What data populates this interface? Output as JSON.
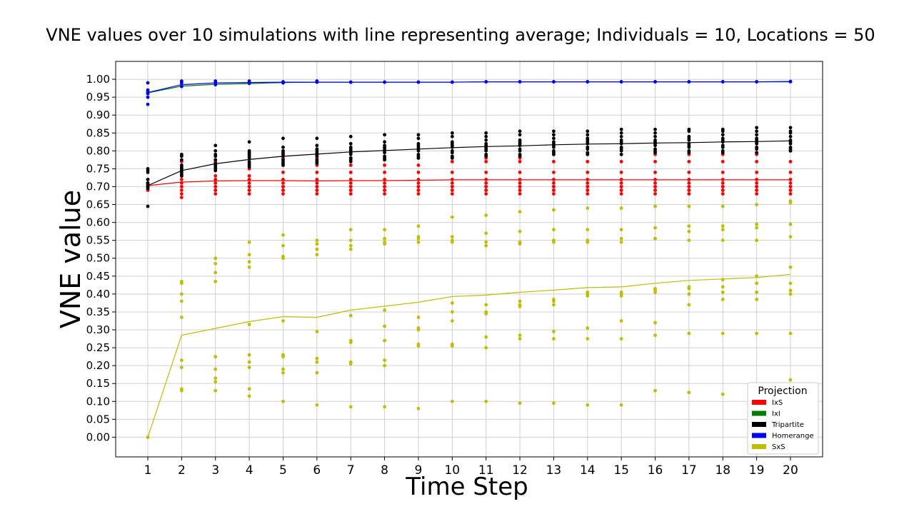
{
  "chart_data": {
    "type": "scatter",
    "title": "VNE values over 10 simulations with line representing average; Individuals = 10, Locations = 50",
    "xlabel": "Time Step",
    "ylabel": "VNE value",
    "x": [
      1,
      2,
      3,
      4,
      5,
      6,
      7,
      8,
      9,
      10,
      11,
      12,
      13,
      14,
      15,
      16,
      17,
      18,
      19,
      20
    ],
    "xlim": [
      0.05,
      20.95
    ],
    "ylim": [
      -0.055,
      1.05
    ],
    "yticks": [
      "0.00",
      "0.05",
      "0.10",
      "0.15",
      "0.20",
      "0.25",
      "0.30",
      "0.35",
      "0.40",
      "0.45",
      "0.50",
      "0.55",
      "0.60",
      "0.65",
      "0.70",
      "0.75",
      "0.80",
      "0.85",
      "0.90",
      "0.95",
      "1.00"
    ],
    "xticks": [
      "1",
      "2",
      "3",
      "4",
      "5",
      "6",
      "7",
      "8",
      "9",
      "10",
      "11",
      "12",
      "13",
      "14",
      "15",
      "16",
      "17",
      "18",
      "19",
      "20"
    ],
    "grid": true,
    "legend": {
      "title": "Projection",
      "placement": "lower-right",
      "entries": [
        {
          "label": "IxS",
          "color": "#ff0000"
        },
        {
          "label": "IxI",
          "color": "#008000"
        },
        {
          "label": "Tripartite",
          "color": "#000000"
        },
        {
          "label": "Homerange",
          "color": "#0000ff"
        },
        {
          "label": "SxS",
          "color": "#bfbf00"
        }
      ]
    },
    "series": [
      {
        "name": "IxS",
        "color": "#ff0000",
        "line_color": "#ff0000",
        "average": [
          0.703,
          0.713,
          0.716,
          0.717,
          0.717,
          0.716,
          0.717,
          0.717,
          0.718,
          0.719,
          0.719,
          0.719,
          0.719,
          0.719,
          0.719,
          0.719,
          0.719,
          0.719,
          0.719,
          0.719
        ],
        "points": [
          [
            0.7,
            0.71,
            0.72,
            0.69,
            0.7,
            0.71,
            0.7,
            0.69,
            0.72,
            0.7
          ],
          [
            0.68,
            0.69,
            0.7,
            0.71,
            0.72,
            0.73,
            0.75,
            0.77,
            0.67,
            0.7
          ],
          [
            0.68,
            0.69,
            0.7,
            0.71,
            0.72,
            0.73,
            0.75,
            0.77,
            0.69,
            0.7
          ],
          [
            0.68,
            0.69,
            0.7,
            0.71,
            0.72,
            0.73,
            0.75,
            0.79,
            0.69,
            0.7
          ],
          [
            0.68,
            0.69,
            0.7,
            0.71,
            0.72,
            0.74,
            0.76,
            0.78,
            0.69,
            0.7
          ],
          [
            0.68,
            0.69,
            0.7,
            0.71,
            0.72,
            0.74,
            0.76,
            0.78,
            0.69,
            0.7
          ],
          [
            0.68,
            0.69,
            0.7,
            0.71,
            0.72,
            0.74,
            0.76,
            0.78,
            0.69,
            0.7
          ],
          [
            0.68,
            0.69,
            0.7,
            0.71,
            0.72,
            0.74,
            0.76,
            0.78,
            0.69,
            0.7
          ],
          [
            0.68,
            0.69,
            0.7,
            0.71,
            0.72,
            0.74,
            0.76,
            0.78,
            0.69,
            0.7
          ],
          [
            0.68,
            0.69,
            0.7,
            0.71,
            0.72,
            0.74,
            0.77,
            0.78,
            0.69,
            0.7
          ],
          [
            0.68,
            0.69,
            0.7,
            0.71,
            0.72,
            0.74,
            0.77,
            0.78,
            0.69,
            0.7
          ],
          [
            0.68,
            0.69,
            0.7,
            0.71,
            0.72,
            0.74,
            0.77,
            0.78,
            0.69,
            0.7
          ],
          [
            0.68,
            0.69,
            0.7,
            0.71,
            0.72,
            0.74,
            0.77,
            0.79,
            0.69,
            0.7
          ],
          [
            0.68,
            0.69,
            0.7,
            0.71,
            0.72,
            0.74,
            0.77,
            0.79,
            0.69,
            0.7
          ],
          [
            0.68,
            0.69,
            0.7,
            0.71,
            0.72,
            0.74,
            0.77,
            0.79,
            0.69,
            0.7
          ],
          [
            0.68,
            0.69,
            0.7,
            0.71,
            0.72,
            0.74,
            0.77,
            0.79,
            0.69,
            0.7
          ],
          [
            0.68,
            0.69,
            0.7,
            0.71,
            0.72,
            0.74,
            0.77,
            0.79,
            0.69,
            0.7
          ],
          [
            0.68,
            0.69,
            0.7,
            0.71,
            0.72,
            0.74,
            0.77,
            0.79,
            0.69,
            0.7
          ],
          [
            0.68,
            0.69,
            0.7,
            0.71,
            0.72,
            0.74,
            0.77,
            0.79,
            0.69,
            0.7
          ],
          [
            0.68,
            0.69,
            0.7,
            0.71,
            0.72,
            0.74,
            0.77,
            0.8,
            0.69,
            0.7
          ]
        ]
      },
      {
        "name": "IxI",
        "color": "#008000",
        "line_color": "#008000",
        "average": [
          0.962,
          0.981,
          0.986,
          0.988,
          0.991,
          0.992,
          0.992,
          0.992,
          0.992,
          0.992,
          0.993,
          0.993,
          0.993,
          0.993,
          0.993,
          0.993,
          0.993,
          0.993,
          0.993,
          0.993
        ],
        "points": [
          [
            0.96,
            0.965
          ],
          [
            0.98,
            0.985
          ],
          [
            0.985,
            0.99
          ],
          [
            0.988,
            0.99
          ],
          [
            0.99,
            0.992
          ],
          [
            0.992
          ],
          [
            0.992
          ],
          [
            0.992
          ],
          [
            0.992
          ],
          [
            0.992
          ],
          [
            0.993
          ],
          [
            0.993
          ],
          [
            0.993
          ],
          [
            0.993
          ],
          [
            0.993
          ],
          [
            0.993
          ],
          [
            0.993
          ],
          [
            0.993
          ],
          [
            0.993
          ],
          [
            0.993
          ]
        ]
      },
      {
        "name": "Tripartite",
        "color": "#000000",
        "line_color": "#000000",
        "average": [
          0.703,
          0.745,
          0.764,
          0.776,
          0.785,
          0.791,
          0.797,
          0.801,
          0.805,
          0.809,
          0.812,
          0.814,
          0.817,
          0.819,
          0.82,
          0.822,
          0.823,
          0.825,
          0.826,
          0.828
        ],
        "points": [
          [
            0.645,
            0.695,
            0.7,
            0.705,
            0.71,
            0.72,
            0.74,
            0.745,
            0.75,
            0.7
          ],
          [
            0.73,
            0.735,
            0.74,
            0.745,
            0.75,
            0.755,
            0.76,
            0.775,
            0.785,
            0.79
          ],
          [
            0.745,
            0.75,
            0.755,
            0.76,
            0.765,
            0.775,
            0.785,
            0.79,
            0.8,
            0.815
          ],
          [
            0.755,
            0.76,
            0.765,
            0.77,
            0.78,
            0.785,
            0.79,
            0.795,
            0.8,
            0.825
          ],
          [
            0.76,
            0.765,
            0.77,
            0.775,
            0.785,
            0.79,
            0.795,
            0.8,
            0.81,
            0.835
          ],
          [
            0.765,
            0.77,
            0.775,
            0.785,
            0.79,
            0.795,
            0.8,
            0.805,
            0.815,
            0.835
          ],
          [
            0.77,
            0.775,
            0.78,
            0.79,
            0.795,
            0.8,
            0.805,
            0.81,
            0.82,
            0.84
          ],
          [
            0.775,
            0.78,
            0.785,
            0.795,
            0.8,
            0.805,
            0.81,
            0.815,
            0.825,
            0.845
          ],
          [
            0.78,
            0.785,
            0.79,
            0.8,
            0.805,
            0.81,
            0.815,
            0.82,
            0.835,
            0.845
          ],
          [
            0.78,
            0.785,
            0.795,
            0.8,
            0.81,
            0.815,
            0.82,
            0.825,
            0.84,
            0.85
          ],
          [
            0.785,
            0.79,
            0.8,
            0.805,
            0.81,
            0.815,
            0.82,
            0.83,
            0.84,
            0.85
          ],
          [
            0.785,
            0.79,
            0.8,
            0.805,
            0.815,
            0.82,
            0.825,
            0.83,
            0.845,
            0.855
          ],
          [
            0.79,
            0.795,
            0.8,
            0.81,
            0.815,
            0.82,
            0.825,
            0.835,
            0.845,
            0.855
          ],
          [
            0.79,
            0.795,
            0.805,
            0.81,
            0.82,
            0.825,
            0.83,
            0.835,
            0.845,
            0.855
          ],
          [
            0.79,
            0.8,
            0.805,
            0.81,
            0.82,
            0.825,
            0.83,
            0.84,
            0.85,
            0.86
          ],
          [
            0.795,
            0.8,
            0.805,
            0.815,
            0.82,
            0.825,
            0.83,
            0.84,
            0.85,
            0.86
          ],
          [
            0.795,
            0.8,
            0.81,
            0.815,
            0.82,
            0.83,
            0.835,
            0.84,
            0.855,
            0.86
          ],
          [
            0.795,
            0.8,
            0.81,
            0.815,
            0.825,
            0.83,
            0.835,
            0.845,
            0.855,
            0.86
          ],
          [
            0.795,
            0.805,
            0.81,
            0.82,
            0.825,
            0.83,
            0.835,
            0.845,
            0.855,
            0.865
          ],
          [
            0.8,
            0.805,
            0.81,
            0.82,
            0.825,
            0.83,
            0.84,
            0.85,
            0.855,
            0.865
          ]
        ]
      },
      {
        "name": "Homerange",
        "color": "#0000ff",
        "line_color": "#0000ff",
        "average": [
          0.963,
          0.985,
          0.99,
          0.991,
          0.992,
          0.992,
          0.992,
          0.992,
          0.992,
          0.992,
          0.993,
          0.993,
          0.993,
          0.993,
          0.993,
          0.993,
          0.993,
          0.993,
          0.993,
          0.994
        ],
        "points": [
          [
            0.93,
            0.95,
            0.96,
            0.965,
            0.97,
            0.99
          ],
          [
            0.98,
            0.99,
            0.995
          ],
          [
            0.985,
            0.99,
            0.995
          ],
          [
            0.99,
            0.995
          ],
          [
            0.99,
            0.993
          ],
          [
            0.992,
            0.995
          ],
          [
            0.992
          ],
          [
            0.992
          ],
          [
            0.992
          ],
          [
            0.992
          ],
          [
            0.993
          ],
          [
            0.993
          ],
          [
            0.993
          ],
          [
            0.993
          ],
          [
            0.993
          ],
          [
            0.993
          ],
          [
            0.993
          ],
          [
            0.993
          ],
          [
            0.993
          ],
          [
            0.994
          ]
        ]
      },
      {
        "name": "SxS",
        "color": "#bfbf00",
        "line_color": "#bfbf00",
        "average": [
          0.0,
          0.285,
          0.304,
          0.323,
          0.337,
          0.335,
          0.355,
          0.366,
          0.377,
          0.393,
          0.397,
          0.405,
          0.411,
          0.418,
          0.42,
          0.43,
          0.438,
          0.442,
          0.446,
          0.455
        ],
        "points": [
          [
            0.0
          ],
          [
            0.13,
            0.135,
            0.195,
            0.215,
            0.335,
            0.38,
            0.4,
            0.43,
            0.435
          ],
          [
            0.13,
            0.155,
            0.165,
            0.19,
            0.225,
            0.435,
            0.46,
            0.485,
            0.5
          ],
          [
            0.115,
            0.135,
            0.195,
            0.21,
            0.23,
            0.315,
            0.475,
            0.49,
            0.51,
            0.545
          ],
          [
            0.1,
            0.18,
            0.19,
            0.225,
            0.23,
            0.325,
            0.5,
            0.505,
            0.535,
            0.565
          ],
          [
            0.09,
            0.18,
            0.21,
            0.22,
            0.295,
            0.51,
            0.525,
            0.54,
            0.55
          ],
          [
            0.085,
            0.205,
            0.21,
            0.265,
            0.27,
            0.34,
            0.525,
            0.535,
            0.55,
            0.58
          ],
          [
            0.085,
            0.2,
            0.215,
            0.27,
            0.31,
            0.355,
            0.54,
            0.545,
            0.555,
            0.58
          ],
          [
            0.08,
            0.255,
            0.26,
            0.3,
            0.305,
            0.335,
            0.545,
            0.555,
            0.56,
            0.59
          ],
          [
            0.1,
            0.255,
            0.26,
            0.325,
            0.35,
            0.375,
            0.545,
            0.55,
            0.56,
            0.615
          ],
          [
            0.1,
            0.25,
            0.28,
            0.345,
            0.35,
            0.37,
            0.535,
            0.545,
            0.57,
            0.62
          ],
          [
            0.095,
            0.275,
            0.285,
            0.365,
            0.37,
            0.38,
            0.54,
            0.545,
            0.575,
            0.63
          ],
          [
            0.095,
            0.275,
            0.295,
            0.37,
            0.38,
            0.385,
            0.545,
            0.55,
            0.58,
            0.635
          ],
          [
            0.09,
            0.275,
            0.305,
            0.395,
            0.4,
            0.405,
            0.545,
            0.55,
            0.58,
            0.64
          ],
          [
            0.09,
            0.275,
            0.325,
            0.395,
            0.4,
            0.405,
            0.545,
            0.555,
            0.58,
            0.64
          ],
          [
            0.13,
            0.285,
            0.32,
            0.405,
            0.41,
            0.415,
            0.555,
            0.555,
            0.585,
            0.645
          ],
          [
            0.125,
            0.29,
            0.37,
            0.4,
            0.415,
            0.42,
            0.55,
            0.575,
            0.59,
            0.645
          ],
          [
            0.12,
            0.29,
            0.385,
            0.405,
            0.42,
            0.44,
            0.55,
            0.58,
            0.59,
            0.645
          ],
          [
            0.29,
            0.385,
            0.405,
            0.43,
            0.45,
            0.55,
            0.585,
            0.595,
            0.65
          ],
          [
            0.16,
            0.29,
            0.4,
            0.41,
            0.43,
            0.475,
            0.56,
            0.595,
            0.655,
            0.66
          ]
        ]
      }
    ]
  }
}
